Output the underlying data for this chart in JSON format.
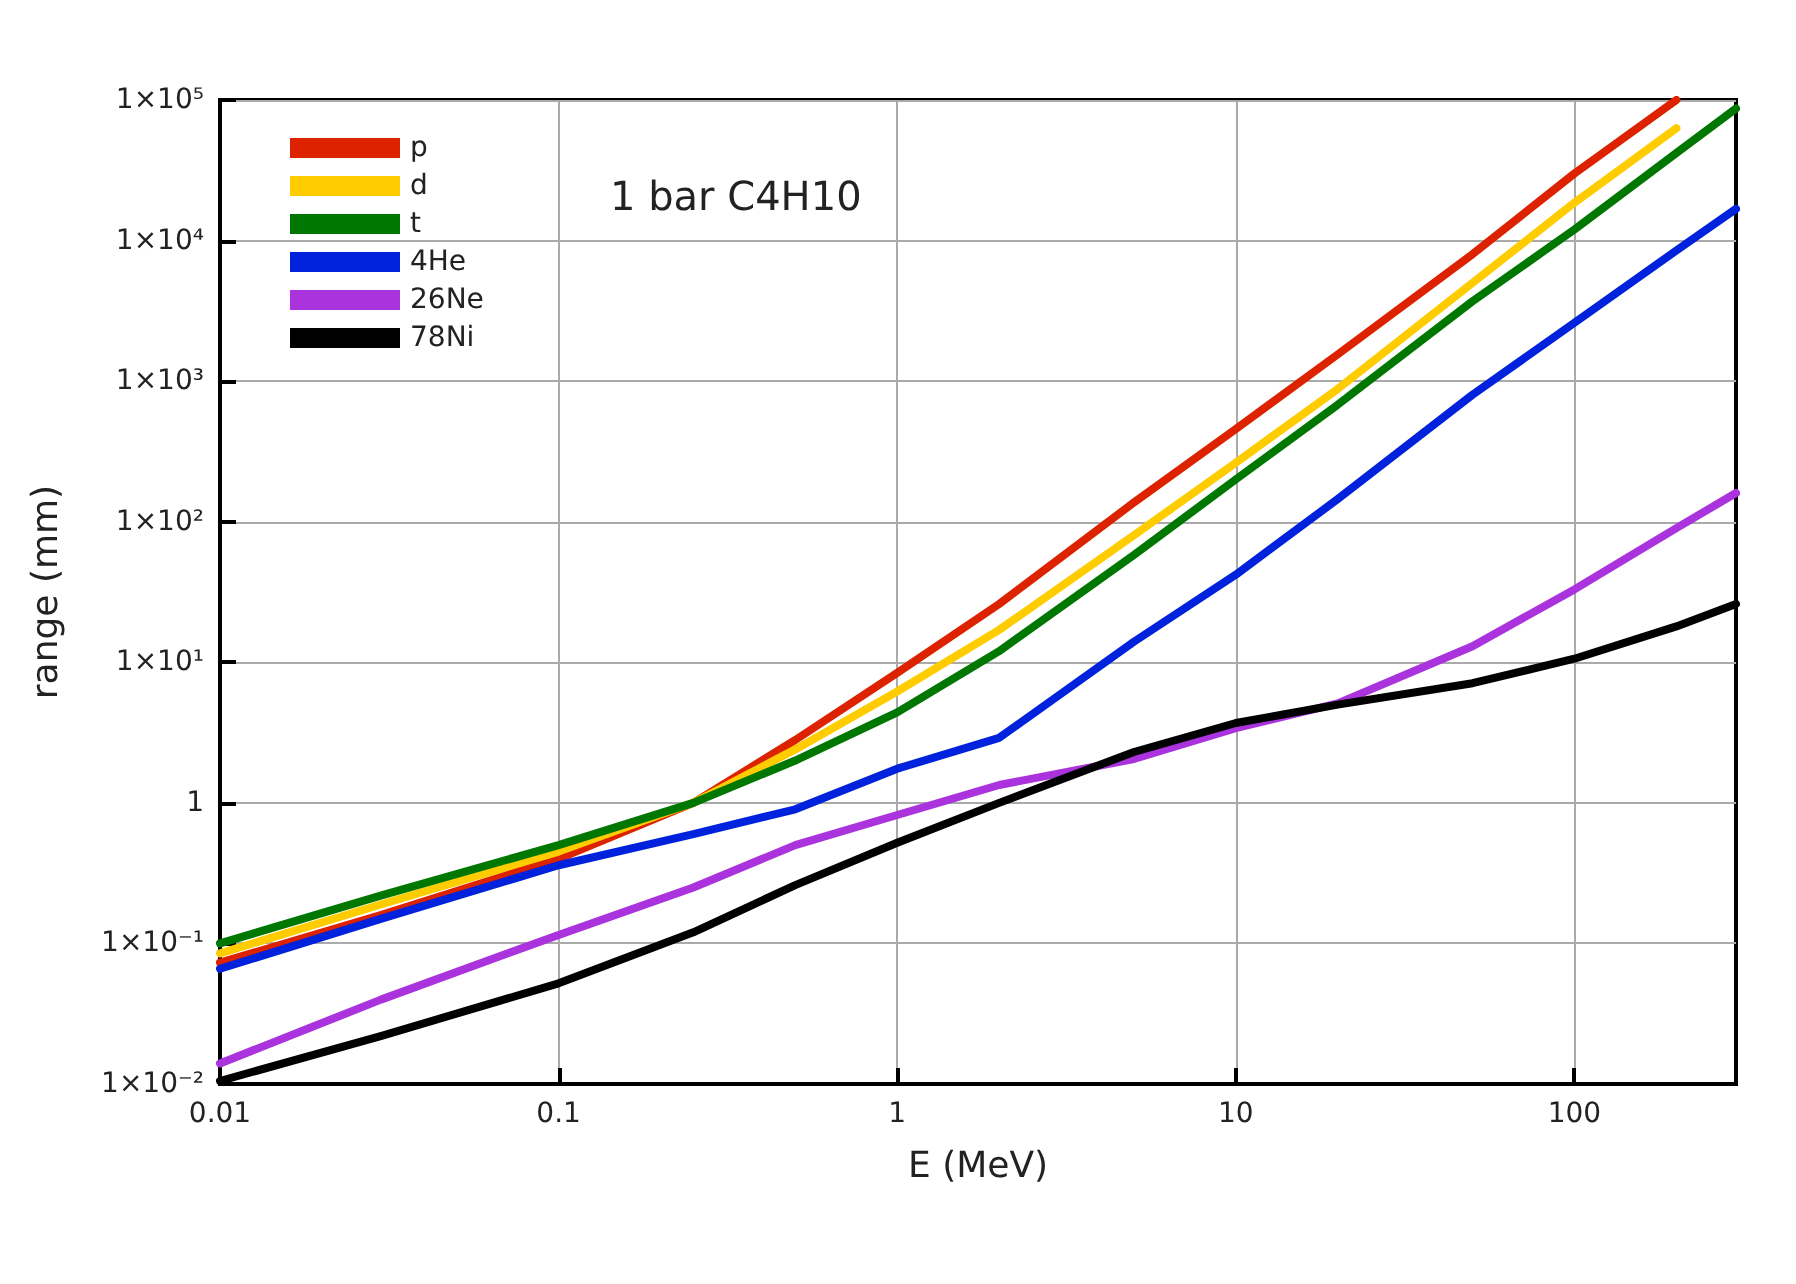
{
  "chart_data": {
    "type": "line",
    "xlabel": "E (MeV)",
    "ylabel": "range (mm)",
    "annotations": [
      "1 bar C4H10"
    ],
    "log": "xy",
    "grid": true,
    "legend": "top left",
    "marker": "none",
    "line_style": "solid",
    "xlim": [
      0.01,
      300
    ],
    "xticks": [
      0.01,
      0.1,
      1,
      10,
      100
    ],
    "ylim": [
      0.01,
      100000
    ],
    "yticks": [
      {
        "value": 0.01,
        "label": "1×10⁻²"
      },
      {
        "value": 0.1,
        "label": "1×10⁻¹"
      },
      {
        "value": 1,
        "label": "1"
      },
      {
        "value": 10,
        "label": "1×10¹"
      },
      {
        "value": 100,
        "label": "1×10²"
      },
      {
        "value": 1000,
        "label": "1×10³"
      },
      {
        "value": 10000,
        "label": "1×10⁴"
      },
      {
        "value": 100000,
        "label": "1×10⁵"
      }
    ],
    "x": [
      0.01,
      0.03,
      0.1,
      0.25,
      0.5,
      1,
      2,
      5,
      10,
      20,
      50,
      100,
      200,
      300
    ],
    "series": [
      {
        "name": "p",
        "color": "#dd2200",
        "values": [
          0.073,
          0.16,
          0.4,
          1.0,
          2.8,
          8.4,
          26,
          137,
          457,
          1550,
          8000,
          30000,
          100000,
          null
        ]
      },
      {
        "name": "d",
        "color": "#ffcc00",
        "values": [
          0.085,
          0.19,
          0.45,
          1.0,
          2.4,
          6.2,
          17,
          80,
          263,
          880,
          5000,
          18600,
          63000,
          null
        ]
      },
      {
        "name": "t",
        "color": "#007700",
        "values": [
          0.1,
          0.22,
          0.5,
          1.0,
          2.0,
          4.4,
          12,
          58,
          200,
          680,
          3700,
          12000,
          42000,
          87000
        ]
      },
      {
        "name": "4He",
        "color": "#0022dd",
        "values": [
          0.066,
          0.15,
          0.36,
          0.6,
          0.9,
          1.75,
          2.9,
          14,
          42,
          145,
          800,
          2600,
          8500,
          16800
        ]
      },
      {
        "name": "26Ne",
        "color": "#aa33dd",
        "values": [
          0.014,
          0.04,
          0.115,
          0.25,
          0.5,
          0.82,
          1.34,
          2.05,
          3.4,
          5.1,
          13,
          33,
          90,
          160
        ]
      },
      {
        "name": "78Ni",
        "color": "#000000",
        "values": [
          0.0105,
          0.022,
          0.052,
          0.12,
          0.26,
          0.52,
          1.0,
          2.3,
          3.7,
          5.0,
          7.1,
          10.6,
          18,
          26
        ]
      }
    ]
  }
}
